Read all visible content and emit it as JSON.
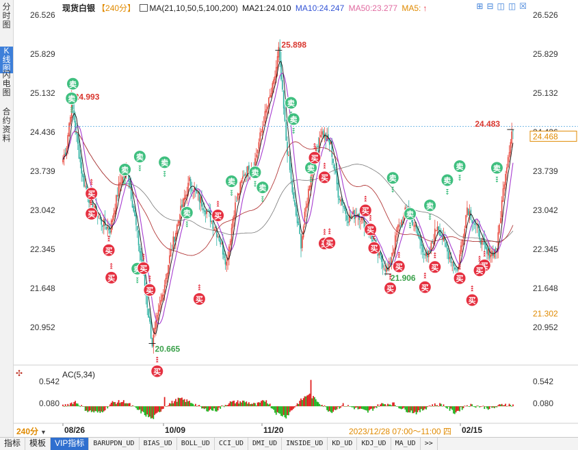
{
  "sidebar": [
    {
      "label": "分时图",
      "active": false
    },
    {
      "label": "K线图",
      "active": true
    },
    {
      "label": "闪电图",
      "active": false
    },
    {
      "label": "合约资料",
      "active": false
    }
  ],
  "header": {
    "symbol": "现货白银",
    "period": "【240分】",
    "ma_spec": "MA(21,10,50,5,100,200)",
    "ma21": "MA21:24.010",
    "ma10": "MA10:24.247",
    "ma50": "MA50:23.277",
    "ma5": "MA5:"
  },
  "toolbar_icons": [
    "zoom-in-icon",
    "zoom-out-icon",
    "pan-left-icon",
    "pan-right-icon",
    "close-icon"
  ],
  "price_axis": {
    "ticks": [
      "26.526",
      "25.829",
      "25.132",
      "24.436",
      "23.739",
      "23.042",
      "22.345",
      "21.648",
      "20.952"
    ],
    "current_price": "24.468",
    "low_marker": "21.302"
  },
  "ac_axis": {
    "label": "AC(5,34)",
    "ticks": [
      "0.542",
      "0.080"
    ]
  },
  "time_axis": {
    "dates": [
      "08/26",
      "10/09",
      "11/20",
      "02/15"
    ],
    "timeframe": "240分",
    "cursor_time": "2023/12/28 07:00～11:00 四"
  },
  "tabs": [
    {
      "label": "指标",
      "active": false,
      "zh": true
    },
    {
      "label": "模板",
      "active": false,
      "zh": true
    },
    {
      "label": "VIP指标",
      "active": true,
      "zh": true
    },
    {
      "label": "BARUPDN_UD",
      "active": false
    },
    {
      "label": "BIAS_UD",
      "active": false
    },
    {
      "label": "BOLL_UD",
      "active": false
    },
    {
      "label": "CCI_UD",
      "active": false
    },
    {
      "label": "DMI_UD",
      "active": false
    },
    {
      "label": "INSIDE_UD",
      "active": false
    },
    {
      "label": "KD_UD",
      "active": false
    },
    {
      "label": "KDJ_UD",
      "active": false
    },
    {
      "label": "MA_UD",
      "active": false
    },
    {
      "label": ">>",
      "active": false
    }
  ],
  "colors": {
    "up": "#e8473c",
    "down": "#2ab0a0",
    "ma21": "#111111",
    "ma10": "#a63bd0",
    "ma50": "#b33a3a",
    "ma100": "#777777",
    "ac_up": "#e02020",
    "ac_down": "#22b522",
    "buy": "#e53040",
    "sell": "#3fbf7f"
  },
  "chart_data": {
    "type": "candlestick",
    "price_range": [
      20.6,
      26.6
    ],
    "ac_range": [
      -0.35,
      0.6
    ],
    "annotations": [
      {
        "label": "25.898",
        "kind": "high"
      },
      {
        "label": "24.993",
        "kind": "high"
      },
      {
        "label": "24.483",
        "kind": "high"
      },
      {
        "label": "20.665",
        "kind": "low"
      },
      {
        "label": "21.906",
        "kind": "low"
      }
    ],
    "signals": [
      {
        "type": "卖",
        "price": 25.3
      },
      {
        "type": "卖",
        "price": 25.04
      },
      {
        "type": "卖",
        "price": 24.0
      },
      {
        "type": "卖",
        "price": 23.77
      },
      {
        "type": "卖",
        "price": 23.0
      },
      {
        "type": "卖",
        "price": 23.9
      },
      {
        "type": "卖",
        "price": 22.0
      },
      {
        "type": "卖",
        "price": 23.56
      },
      {
        "type": "卖",
        "price": 23.72
      },
      {
        "type": "卖",
        "price": 23.45
      },
      {
        "type": "卖",
        "price": 24.67
      },
      {
        "type": "卖",
        "price": 24.96
      },
      {
        "type": "卖",
        "price": 23.8
      },
      {
        "type": "卖",
        "price": 23.62
      },
      {
        "type": "卖",
        "price": 23.13
      },
      {
        "type": "卖",
        "price": 22.98
      },
      {
        "type": "卖",
        "price": 23.8
      },
      {
        "type": "卖",
        "price": 23.83
      },
      {
        "type": "卖",
        "price": 23.58
      },
      {
        "type": "买",
        "price": 23.34
      },
      {
        "type": "买",
        "price": 22.98
      },
      {
        "type": "买",
        "price": 22.33
      },
      {
        "type": "买",
        "price": 21.84
      },
      {
        "type": "买",
        "price": 22.01
      },
      {
        "type": "买",
        "price": 21.62
      },
      {
        "type": "买",
        "price": 20.17
      },
      {
        "type": "买",
        "price": 21.46
      },
      {
        "type": "买",
        "price": 22.95
      },
      {
        "type": "买",
        "price": 22.45
      },
      {
        "type": "买",
        "price": 22.46
      },
      {
        "type": "买",
        "price": 22.7
      },
      {
        "type": "买",
        "price": 22.04
      },
      {
        "type": "买",
        "price": 21.65
      },
      {
        "type": "买",
        "price": 22.03
      },
      {
        "type": "买",
        "price": 21.83
      },
      {
        "type": "买",
        "price": 21.44
      },
      {
        "type": "买",
        "price": 22.06
      },
      {
        "type": "买",
        "price": 21.97
      },
      {
        "type": "买",
        "price": 23.98
      },
      {
        "type": "买",
        "price": 23.63
      },
      {
        "type": "买",
        "price": 23.04
      },
      {
        "type": "买",
        "price": 22.37
      },
      {
        "type": "买",
        "price": 21.67
      }
    ],
    "anchors": [
      [
        0,
        23.95
      ],
      [
        3,
        24.2
      ],
      [
        7,
        24.99
      ],
      [
        11,
        24.35
      ],
      [
        16,
        23.6
      ],
      [
        22,
        23.2
      ],
      [
        30,
        22.85
      ],
      [
        38,
        22.7
      ],
      [
        46,
        23.55
      ],
      [
        52,
        23.75
      ],
      [
        58,
        22.9
      ],
      [
        66,
        21.7
      ],
      [
        72,
        20.66
      ],
      [
        78,
        21.3
      ],
      [
        86,
        22.2
      ],
      [
        94,
        22.95
      ],
      [
        102,
        23.55
      ],
      [
        110,
        23.25
      ],
      [
        118,
        22.95
      ],
      [
        126,
        22.55
      ],
      [
        132,
        22.1
      ],
      [
        138,
        23.05
      ],
      [
        146,
        23.7
      ],
      [
        154,
        23.85
      ],
      [
        162,
        24.65
      ],
      [
        170,
        25.3
      ],
      [
        174,
        25.9
      ],
      [
        180,
        24.3
      ],
      [
        186,
        23.2
      ],
      [
        192,
        22.45
      ],
      [
        200,
        23.7
      ],
      [
        208,
        24.45
      ],
      [
        216,
        24.2
      ],
      [
        222,
        23.35
      ],
      [
        230,
        22.9
      ],
      [
        238,
        23.0
      ],
      [
        246,
        22.7
      ],
      [
        254,
        22.25
      ],
      [
        262,
        21.95
      ],
      [
        270,
        22.7
      ],
      [
        278,
        23.1
      ],
      [
        286,
        22.6
      ],
      [
        294,
        22.15
      ],
      [
        302,
        22.8
      ],
      [
        310,
        22.3
      ],
      [
        318,
        21.95
      ],
      [
        326,
        23.1
      ],
      [
        334,
        22.7
      ],
      [
        342,
        22.25
      ],
      [
        350,
        22.35
      ],
      [
        356,
        23.6
      ],
      [
        362,
        24.45
      ]
    ],
    "ac_anchors": [
      [
        0,
        0.02
      ],
      [
        10,
        0.12
      ],
      [
        20,
        -0.08
      ],
      [
        30,
        -0.12
      ],
      [
        40,
        0.1
      ],
      [
        50,
        0.12
      ],
      [
        60,
        -0.05
      ],
      [
        72,
        -0.25
      ],
      [
        82,
        0.02
      ],
      [
        94,
        0.18
      ],
      [
        104,
        0.1
      ],
      [
        114,
        -0.05
      ],
      [
        124,
        -0.06
      ],
      [
        134,
        0.1
      ],
      [
        146,
        0.12
      ],
      [
        156,
        0.05
      ],
      [
        164,
        0.15
      ],
      [
        172,
        -0.12
      ],
      [
        180,
        -0.2
      ],
      [
        190,
        0.1
      ],
      [
        198,
        0.28
      ],
      [
        206,
        0.12
      ],
      [
        216,
        -0.1
      ],
      [
        226,
        0.05
      ],
      [
        236,
        -0.02
      ],
      [
        246,
        -0.1
      ],
      [
        256,
        0.06
      ],
      [
        266,
        0.08
      ],
      [
        276,
        -0.06
      ],
      [
        286,
        -0.12
      ],
      [
        296,
        0.04
      ],
      [
        306,
        0.06
      ],
      [
        316,
        -0.12
      ],
      [
        326,
        0.05
      ],
      [
        336,
        0.02
      ],
      [
        346,
        -0.03
      ],
      [
        356,
        0.07
      ],
      [
        362,
        0.04
      ]
    ]
  }
}
